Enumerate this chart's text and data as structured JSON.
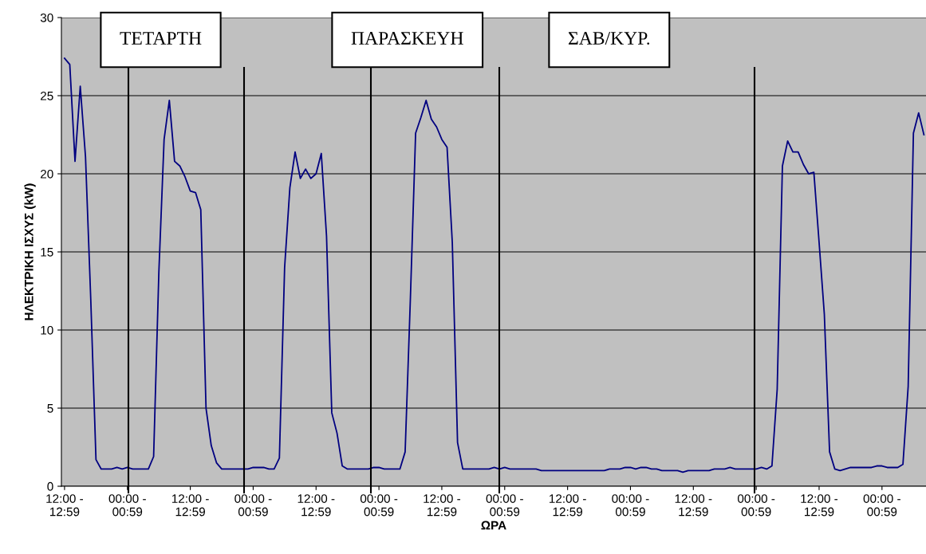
{
  "chart_data": {
    "type": "line",
    "xlabel": "ΩΡΑ",
    "ylabel": "ΗΛΕΚΤΡΙΚΗ ΙΣΧΥΣ (kW)",
    "annotations": [
      "ΤΕΤΑΡΤΗ",
      "ΠΑΡΑΣΚΕΥΗ",
      "ΣΑΒ/ΚΥΡ."
    ],
    "categories": [
      "12:00 -\n12:59",
      null,
      null,
      null,
      null,
      null,
      null,
      null,
      null,
      null,
      null,
      null,
      "00:00 -\n00:59",
      null,
      null,
      null,
      null,
      null,
      null,
      null,
      null,
      null,
      null,
      null,
      "12:00 -\n12:59",
      null,
      null,
      null,
      null,
      null,
      null,
      null,
      null,
      null,
      null,
      null,
      "00:00 -\n00:59",
      null,
      null,
      null,
      null,
      null,
      null,
      null,
      null,
      null,
      null,
      null,
      "12:00 -\n12:59",
      null,
      null,
      null,
      null,
      null,
      null,
      null,
      null,
      null,
      null,
      null,
      "00:00 -\n00:59",
      null,
      null,
      null,
      null,
      null,
      null,
      null,
      null,
      null,
      null,
      null,
      "12:00 -\n12:59",
      null,
      null,
      null,
      null,
      null,
      null,
      null,
      null,
      null,
      null,
      null,
      "00:00 -\n00:59",
      null,
      null,
      null,
      null,
      null,
      null,
      null,
      null,
      null,
      null,
      null,
      "12:00 -\n12:59",
      null,
      null,
      null,
      null,
      null,
      null,
      null,
      null,
      null,
      null,
      null,
      "00:00 -\n00:59",
      null,
      null,
      null,
      null,
      null,
      null,
      null,
      null,
      null,
      null,
      null,
      "12:00 -\n12:59",
      null,
      null,
      null,
      null,
      null,
      null,
      null,
      null,
      null,
      null,
      null,
      "00:00 -\n00:59",
      null,
      null,
      null,
      null,
      null,
      null,
      null,
      null,
      null,
      null,
      null,
      "12:00 -\n12:59",
      null,
      null,
      null,
      null,
      null,
      null,
      null,
      null,
      null,
      null,
      null,
      "00:00 -\n00:59",
      null,
      null,
      null,
      null,
      null,
      null,
      null,
      null
    ],
    "series": [
      {
        "color": "#000080",
        "values": [
          27.4,
          27.0,
          20.8,
          25.6,
          21.1,
          12.0,
          1.7,
          1.1,
          1.1,
          1.1,
          1.2,
          1.1,
          1.2,
          1.1,
          1.1,
          1.1,
          1.1,
          1.9,
          13.7,
          22.2,
          24.7,
          20.8,
          20.5,
          19.8,
          18.9,
          18.8,
          17.7,
          5.0,
          2.6,
          1.5,
          1.1,
          1.1,
          1.1,
          1.1,
          1.1,
          1.1,
          1.2,
          1.2,
          1.2,
          1.1,
          1.1,
          1.8,
          14.0,
          19.1,
          21.4,
          19.7,
          20.3,
          19.7,
          20.0,
          21.3,
          16.0,
          4.7,
          3.4,
          1.3,
          1.1,
          1.1,
          1.1,
          1.1,
          1.1,
          1.2,
          1.2,
          1.1,
          1.1,
          1.1,
          1.1,
          2.2,
          12.0,
          22.6,
          23.6,
          24.7,
          23.5,
          23.0,
          22.2,
          21.7,
          15.6,
          2.8,
          1.1,
          1.1,
          1.1,
          1.1,
          1.1,
          1.1,
          1.2,
          1.1,
          1.2,
          1.1,
          1.1,
          1.1,
          1.1,
          1.1,
          1.1,
          1.0,
          1.0,
          1.0,
          1.0,
          1.0,
          1.0,
          1.0,
          1.0,
          1.0,
          1.0,
          1.0,
          1.0,
          1.0,
          1.1,
          1.1,
          1.1,
          1.2,
          1.2,
          1.1,
          1.2,
          1.2,
          1.1,
          1.1,
          1.0,
          1.0,
          1.0,
          1.0,
          0.9,
          1.0,
          1.0,
          1.0,
          1.0,
          1.0,
          1.1,
          1.1,
          1.1,
          1.2,
          1.1,
          1.1,
          1.1,
          1.1,
          1.1,
          1.2,
          1.1,
          1.3,
          6.2,
          20.5,
          22.1,
          21.4,
          21.4,
          20.6,
          20.0,
          20.1,
          15.6,
          11.0,
          2.2,
          1.1,
          1.0,
          1.1,
          1.2,
          1.2,
          1.2,
          1.2,
          1.2,
          1.3,
          1.3,
          1.2,
          1.2,
          1.2,
          1.4,
          6.4,
          22.6,
          23.9,
          22.5
        ]
      }
    ],
    "ylim": [
      0,
      30
    ],
    "yticks": [
      0,
      5,
      10,
      15,
      20,
      25,
      30
    ],
    "grid": "y",
    "marker": "none",
    "line_style": "solid"
  }
}
